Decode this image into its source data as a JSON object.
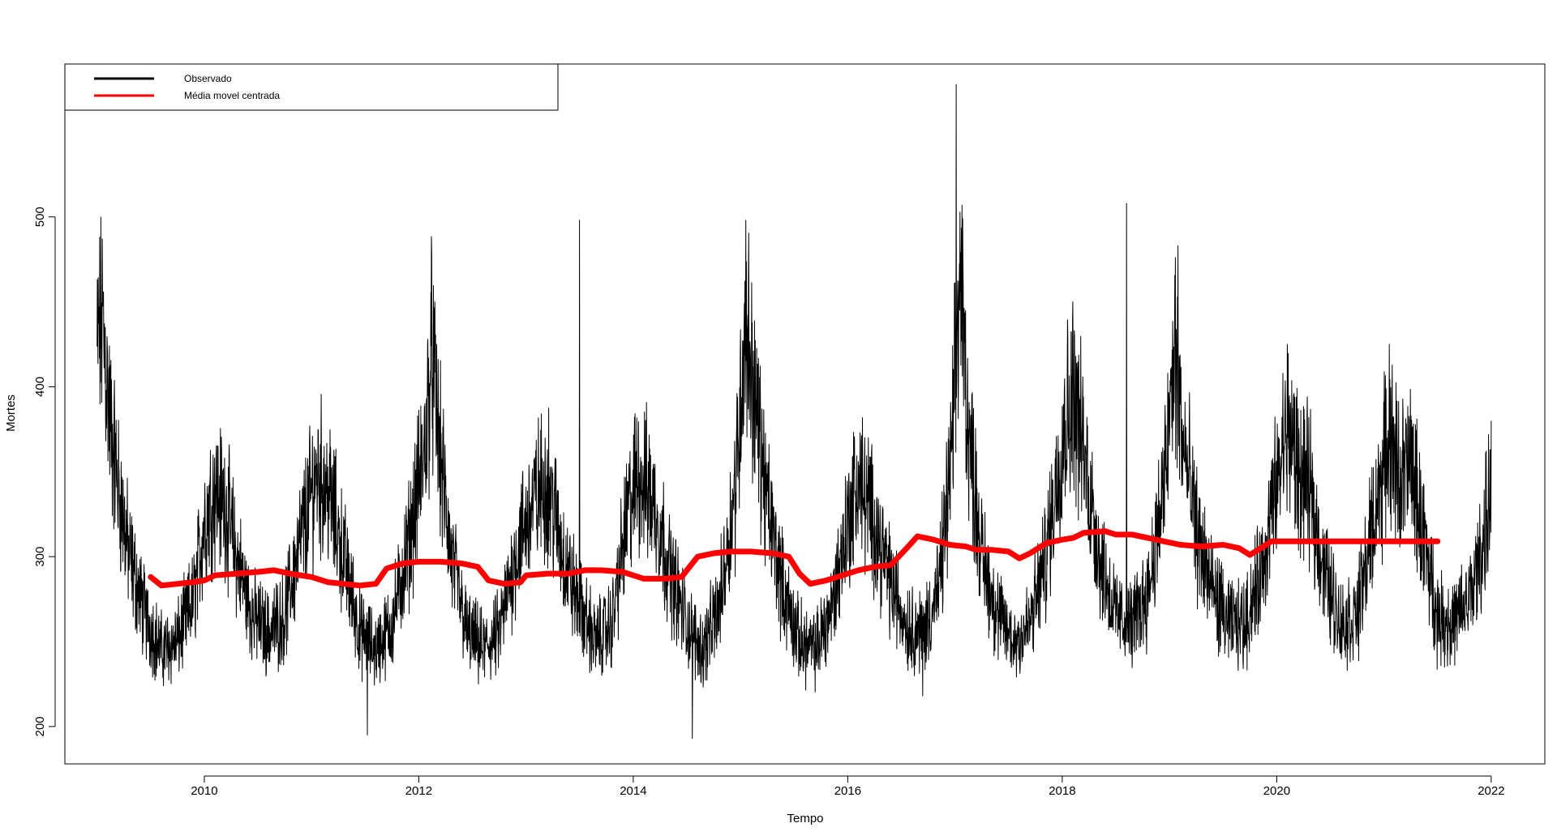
{
  "chart_data": {
    "type": "line",
    "title": "",
    "xlabel": "Tempo",
    "ylabel": "Mortes",
    "xlim": [
      2008.7,
      2022.5
    ],
    "ylim": [
      178,
      590
    ],
    "x_ticks": [
      2010,
      2012,
      2014,
      2016,
      2018,
      2020,
      2022
    ],
    "x_tick_labels": [
      "2010",
      "2012",
      "2014",
      "2016",
      "2018",
      "2020",
      "2022"
    ],
    "y_ticks": [
      200,
      300,
      400,
      500
    ],
    "y_tick_labels": [
      "200",
      "300",
      "400",
      "500"
    ],
    "grid": false,
    "legend": {
      "position": "top-left",
      "entries": [
        {
          "label": "Observado",
          "color": "#000000"
        },
        {
          "label": "Média movel centrada",
          "color": "#ff0000"
        }
      ]
    },
    "series": [
      {
        "name": "Observado",
        "color": "#000000",
        "kind": "daily",
        "x_start": 2009.0,
        "x_end": 2022.0,
        "points_per_year": 365,
        "envelope": [
          [
            2009.0,
            420
          ],
          [
            2009.05,
            440
          ],
          [
            2009.12,
            380
          ],
          [
            2009.2,
            340
          ],
          [
            2009.3,
            300
          ],
          [
            2009.45,
            265
          ],
          [
            2009.6,
            245
          ],
          [
            2009.75,
            250
          ],
          [
            2009.9,
            275
          ],
          [
            2010.0,
            320
          ],
          [
            2010.1,
            340
          ],
          [
            2010.2,
            330
          ],
          [
            2010.3,
            300
          ],
          [
            2010.45,
            265
          ],
          [
            2010.6,
            255
          ],
          [
            2010.75,
            265
          ],
          [
            2010.9,
            310
          ],
          [
            2011.05,
            350
          ],
          [
            2011.15,
            340
          ],
          [
            2011.3,
            300
          ],
          [
            2011.45,
            255
          ],
          [
            2011.6,
            245
          ],
          [
            2011.75,
            260
          ],
          [
            2011.9,
            305
          ],
          [
            2012.05,
            360
          ],
          [
            2012.12,
            420
          ],
          [
            2012.2,
            360
          ],
          [
            2012.3,
            300
          ],
          [
            2012.45,
            255
          ],
          [
            2012.6,
            245
          ],
          [
            2012.75,
            255
          ],
          [
            2012.9,
            300
          ],
          [
            2013.05,
            330
          ],
          [
            2013.2,
            345
          ],
          [
            2013.35,
            300
          ],
          [
            2013.5,
            270
          ],
          [
            2013.65,
            250
          ],
          [
            2013.8,
            260
          ],
          [
            2013.95,
            325
          ],
          [
            2014.05,
            350
          ],
          [
            2014.2,
            330
          ],
          [
            2014.35,
            290
          ],
          [
            2014.5,
            260
          ],
          [
            2014.65,
            245
          ],
          [
            2014.8,
            270
          ],
          [
            2014.95,
            340
          ],
          [
            2015.05,
            440
          ],
          [
            2015.12,
            400
          ],
          [
            2015.25,
            330
          ],
          [
            2015.4,
            280
          ],
          [
            2015.55,
            250
          ],
          [
            2015.7,
            245
          ],
          [
            2015.85,
            270
          ],
          [
            2016.0,
            320
          ],
          [
            2016.1,
            345
          ],
          [
            2016.25,
            320
          ],
          [
            2016.4,
            285
          ],
          [
            2016.55,
            260
          ],
          [
            2016.7,
            255
          ],
          [
            2016.85,
            280
          ],
          [
            2016.97,
            360
          ],
          [
            2017.05,
            470
          ],
          [
            2017.12,
            380
          ],
          [
            2017.25,
            300
          ],
          [
            2017.4,
            265
          ],
          [
            2017.55,
            250
          ],
          [
            2017.7,
            260
          ],
          [
            2017.85,
            300
          ],
          [
            2018.0,
            370
          ],
          [
            2018.1,
            400
          ],
          [
            2018.2,
            360
          ],
          [
            2018.35,
            300
          ],
          [
            2018.5,
            265
          ],
          [
            2018.65,
            260
          ],
          [
            2018.8,
            280
          ],
          [
            2018.95,
            340
          ],
          [
            2019.05,
            420
          ],
          [
            2019.12,
            370
          ],
          [
            2019.25,
            315
          ],
          [
            2019.4,
            280
          ],
          [
            2019.55,
            260
          ],
          [
            2019.7,
            260
          ],
          [
            2019.85,
            290
          ],
          [
            2020.0,
            340
          ],
          [
            2020.1,
            380
          ],
          [
            2020.2,
            350
          ],
          [
            2020.3,
            340
          ],
          [
            2020.45,
            290
          ],
          [
            2020.6,
            260
          ],
          [
            2020.75,
            265
          ],
          [
            2020.9,
            320
          ],
          [
            2021.05,
            370
          ],
          [
            2021.15,
            345
          ],
          [
            2021.25,
            355
          ],
          [
            2021.4,
            300
          ],
          [
            2021.5,
            265
          ],
          [
            2021.65,
            260
          ],
          [
            2021.8,
            275
          ],
          [
            2021.92,
            305
          ],
          [
            2022.0,
            340
          ]
        ],
        "notable_peaks": [
          [
            2009.02,
            447
          ],
          [
            2011.52,
            195
          ],
          [
            2012.12,
            478
          ],
          [
            2013.5,
            498
          ],
          [
            2014.55,
            193
          ],
          [
            2015.05,
            498
          ],
          [
            2016.7,
            218
          ],
          [
            2017.01,
            578
          ],
          [
            2018.1,
            450
          ],
          [
            2018.6,
            508
          ],
          [
            2019.08,
            483
          ],
          [
            2020.1,
            425
          ],
          [
            2021.05,
            425
          ],
          [
            2022.0,
            380
          ]
        ]
      },
      {
        "name": "Média movel centrada",
        "color": "#ff0000",
        "kind": "smooth",
        "points": [
          [
            2009.5,
            288
          ],
          [
            2009.6,
            283
          ],
          [
            2009.75,
            284
          ],
          [
            2009.9,
            285
          ],
          [
            2010.0,
            286
          ],
          [
            2010.1,
            289
          ],
          [
            2010.3,
            290
          ],
          [
            2010.5,
            291
          ],
          [
            2010.65,
            292
          ],
          [
            2010.8,
            290
          ],
          [
            2011.0,
            288
          ],
          [
            2011.15,
            285
          ],
          [
            2011.3,
            284
          ],
          [
            2011.45,
            283
          ],
          [
            2011.6,
            284
          ],
          [
            2011.7,
            293
          ],
          [
            2011.85,
            296
          ],
          [
            2012.0,
            297
          ],
          [
            2012.2,
            297
          ],
          [
            2012.4,
            296
          ],
          [
            2012.55,
            294
          ],
          [
            2012.65,
            286
          ],
          [
            2012.8,
            284
          ],
          [
            2012.95,
            285
          ],
          [
            2013.0,
            289
          ],
          [
            2013.2,
            290
          ],
          [
            2013.4,
            290
          ],
          [
            2013.55,
            292
          ],
          [
            2013.7,
            292
          ],
          [
            2013.9,
            291
          ],
          [
            2014.0,
            289
          ],
          [
            2014.1,
            287
          ],
          [
            2014.3,
            287
          ],
          [
            2014.45,
            288
          ],
          [
            2014.6,
            300
          ],
          [
            2014.75,
            302
          ],
          [
            2014.9,
            303
          ],
          [
            2015.1,
            303
          ],
          [
            2015.3,
            302
          ],
          [
            2015.45,
            300
          ],
          [
            2015.55,
            290
          ],
          [
            2015.65,
            284
          ],
          [
            2015.8,
            286
          ],
          [
            2015.95,
            289
          ],
          [
            2016.1,
            292
          ],
          [
            2016.25,
            294
          ],
          [
            2016.4,
            295
          ],
          [
            2016.55,
            305
          ],
          [
            2016.65,
            312
          ],
          [
            2016.8,
            310
          ],
          [
            2016.95,
            307
          ],
          [
            2017.1,
            306
          ],
          [
            2017.2,
            304
          ],
          [
            2017.35,
            304
          ],
          [
            2017.5,
            303
          ],
          [
            2017.6,
            299
          ],
          [
            2017.7,
            302
          ],
          [
            2017.85,
            308
          ],
          [
            2018.0,
            310
          ],
          [
            2018.1,
            311
          ],
          [
            2018.2,
            314
          ],
          [
            2018.4,
            315
          ],
          [
            2018.5,
            313
          ],
          [
            2018.65,
            313
          ],
          [
            2018.8,
            311
          ],
          [
            2018.95,
            309
          ],
          [
            2019.1,
            307
          ],
          [
            2019.3,
            306
          ],
          [
            2019.5,
            307
          ],
          [
            2019.65,
            305
          ],
          [
            2019.75,
            301
          ],
          [
            2019.85,
            305
          ],
          [
            2019.95,
            309
          ],
          [
            2020.5,
            309
          ],
          [
            2021.0,
            309
          ],
          [
            2021.5,
            309
          ]
        ]
      }
    ]
  }
}
